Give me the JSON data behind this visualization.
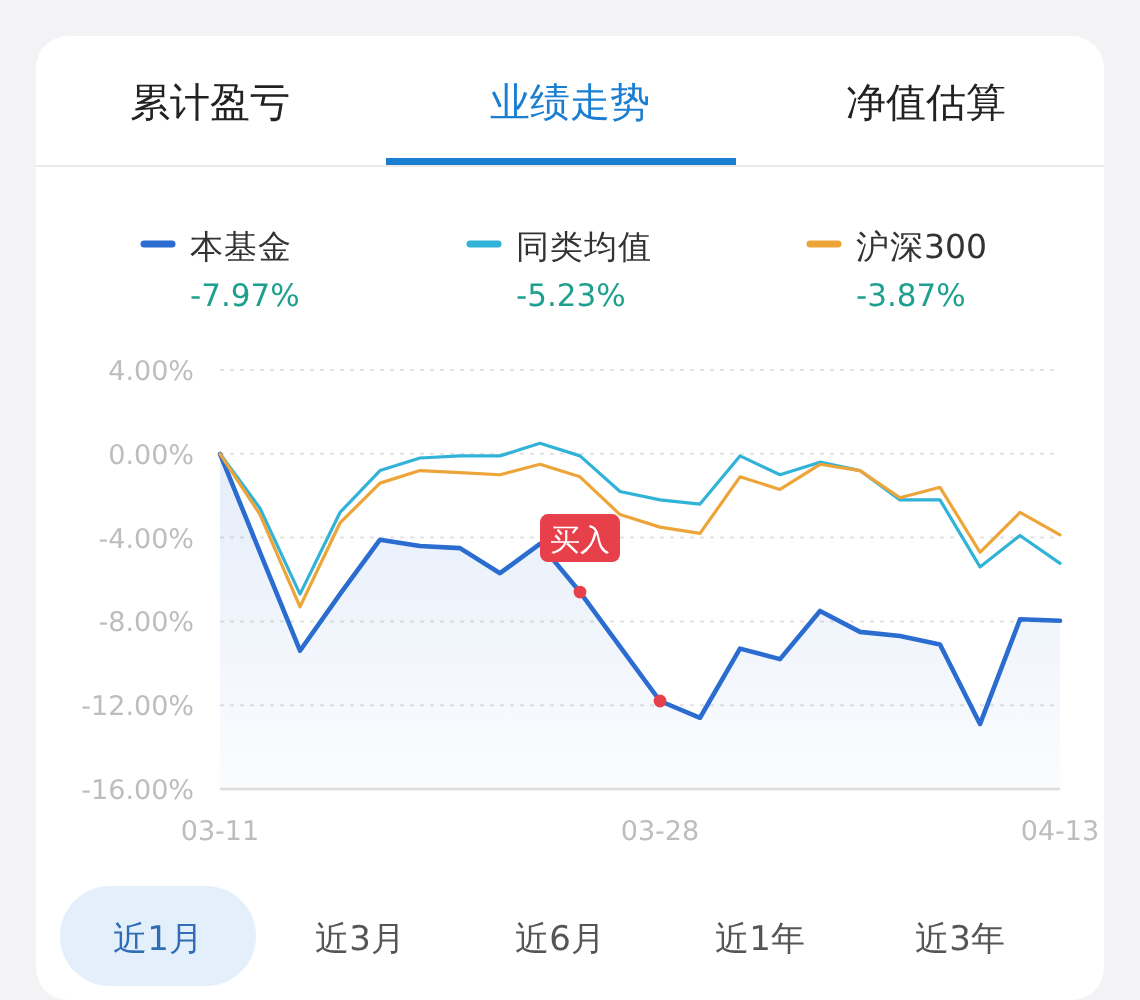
{
  "chart_data": {
    "type": "line",
    "title": "业绩走势",
    "categories": [
      "03-11",
      null,
      null,
      null,
      null,
      null,
      null,
      null,
      null,
      null,
      null,
      "03-28",
      null,
      null,
      null,
      null,
      null,
      null,
      null,
      null,
      null,
      "04-13"
    ],
    "series": [
      {
        "name": "本基金",
        "color": "#2a6ccf",
        "values": [
          0,
          -4.7,
          -9.4,
          -6.7,
          -4.1,
          -4.4,
          -4.5,
          -5.7,
          -4.3,
          -6.6,
          -9.2,
          -11.8,
          -12.6,
          -9.3,
          -9.8,
          -7.5,
          -8.5,
          -8.7,
          -9.1,
          -12.9,
          -7.9,
          -7.97
        ],
        "lower": [
          -16,
          -16,
          -16,
          -16,
          -16,
          -16,
          -16,
          -16,
          -16,
          -16,
          -16,
          -16,
          -16,
          -16,
          -16,
          -16,
          -16,
          -16,
          -16,
          -16,
          -16,
          -16
        ],
        "upper": [
          0,
          -4.7,
          -9.4,
          -6.7,
          -4.1,
          -4.4,
          -4.5,
          -5.7,
          -4.3,
          -6.6,
          -9.2,
          -11.8,
          -12.6,
          -9.3,
          -9.8,
          -7.5,
          -8.5,
          -8.7,
          -9.1,
          -12.9,
          -7.9,
          -7.97
        ]
      },
      {
        "name": "同类均值",
        "color": "#31b3d8",
        "values": [
          0,
          -2.6,
          -6.7,
          -2.8,
          -0.8,
          -0.2,
          -0.1,
          -0.1,
          0.5,
          -0.1,
          -1.8,
          -2.2,
          -2.4,
          -0.1,
          -1.0,
          -0.4,
          -0.8,
          -2.2,
          -2.2,
          -5.4,
          -3.9,
          -5.23
        ]
      },
      {
        "name": "沪深300",
        "color": "#eda53a",
        "values": [
          0,
          -2.9,
          -7.3,
          -3.3,
          -1.4,
          -0.8,
          -0.9,
          -1.0,
          -0.5,
          -1.1,
          -2.9,
          -3.5,
          -3.8,
          -1.1,
          -1.7,
          -0.5,
          -0.8,
          -2.1,
          -1.6,
          -4.7,
          -2.8,
          -3.87
        ]
      },
      {
        "name": "买入",
        "type": "scatter",
        "marker": "circle",
        "color": "#e8404a",
        "values": [
          null,
          null,
          null,
          null,
          null,
          null,
          null,
          null,
          null,
          -6.6,
          null,
          -11.8,
          null,
          null,
          null,
          null,
          null,
          null,
          null,
          null,
          null,
          null
        ]
      }
    ],
    "ylim": [
      -16,
      4
    ],
    "yticks": [
      {
        "value": 4,
        "label": "4.00%"
      },
      {
        "value": 0,
        "label": "0.00%"
      },
      {
        "value": -4,
        "label": "-4.00%"
      },
      {
        "value": -8,
        "label": "-8.00%"
      },
      {
        "value": -12,
        "label": "-12.00%"
      },
      {
        "value": -16,
        "label": "-16.00%"
      }
    ],
    "grid": "y",
    "legend": "top",
    "annotations": [
      "累计盈亏",
      "净值估算",
      "-7.97%",
      "-5.23%",
      "-3.87%",
      "近1月",
      "近3月",
      "近6月",
      "近1年",
      "近3年"
    ]
  }
}
